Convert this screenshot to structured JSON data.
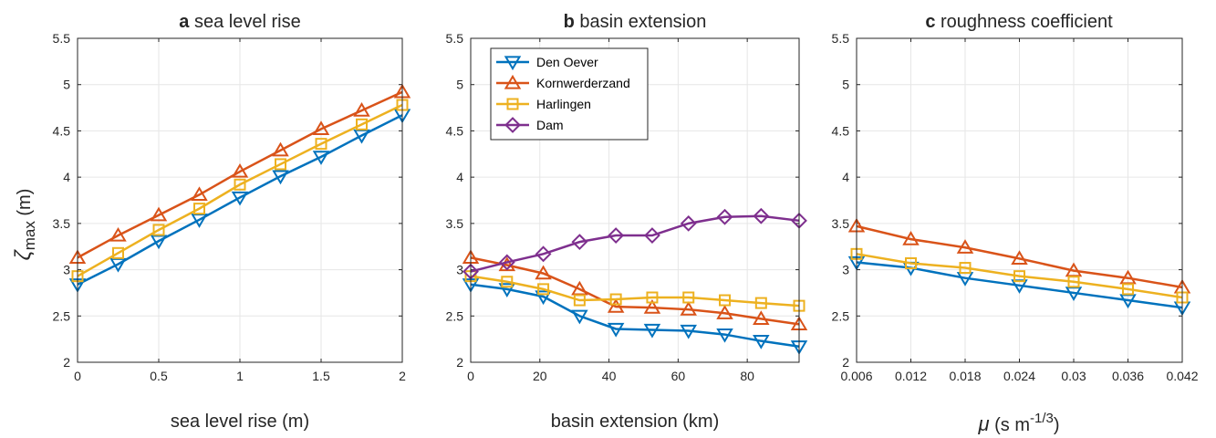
{
  "colors": {
    "den_oever": "#0072BD",
    "kornwerderzand": "#D95319",
    "harlingen": "#EDB120",
    "dam": "#7E2F8E",
    "grid": "#e6e6e6",
    "axis": "#262626"
  },
  "chart_data": [
    {
      "type": "line",
      "panel_letter": "a",
      "title": "sea level rise",
      "xlabel": "sea level rise (m)",
      "ylabel_symbol": "ζ",
      "ylabel_sub": "max",
      "ylabel_unit": " (m)",
      "xlim": [
        0,
        2
      ],
      "ylim": [
        2,
        5.5
      ],
      "xticks": [
        0,
        0.5,
        1,
        1.5,
        2
      ],
      "xtick_labels": [
        "0",
        "0.5",
        "1",
        "1.5",
        "2"
      ],
      "yticks": [
        2,
        2.5,
        3,
        3.5,
        4,
        4.5,
        5,
        5.5
      ],
      "ytick_labels": [
        "2",
        "2.5",
        "3",
        "3.5",
        "4",
        "4.5",
        "5",
        "5.5"
      ],
      "grid": true,
      "x": [
        0,
        0.25,
        0.5,
        0.75,
        1,
        1.25,
        1.5,
        1.75,
        2
      ],
      "series": [
        {
          "key": "den_oever",
          "marker": "triangle-down",
          "values": [
            2.84,
            3.06,
            3.31,
            3.54,
            3.78,
            4.01,
            4.22,
            4.45,
            4.67
          ]
        },
        {
          "key": "kornwerderzand",
          "marker": "triangle-up",
          "values": [
            3.13,
            3.37,
            3.59,
            3.81,
            4.06,
            4.29,
            4.52,
            4.72,
            4.92
          ]
        },
        {
          "key": "harlingen",
          "marker": "square",
          "values": [
            2.93,
            3.18,
            3.43,
            3.66,
            3.92,
            4.14,
            4.36,
            4.57,
            4.78
          ]
        }
      ]
    },
    {
      "type": "line",
      "panel_letter": "b",
      "title": "basin extension",
      "xlabel": "basin extension (km)",
      "xlim": [
        0,
        95
      ],
      "ylim": [
        2,
        5.5
      ],
      "xticks": [
        0,
        20,
        40,
        60,
        80
      ],
      "xtick_labels": [
        "0",
        "20",
        "40",
        "60",
        "80"
      ],
      "yticks": [
        2,
        2.5,
        3,
        3.5,
        4,
        4.5,
        5,
        5.5
      ],
      "ytick_labels": [
        "2",
        "2.5",
        "3",
        "3.5",
        "4",
        "4.5",
        "5",
        "5.5"
      ],
      "grid": true,
      "legend": {
        "placement": "top-left",
        "entries": [
          {
            "key": "den_oever",
            "label": "Den Oever",
            "marker": "triangle-down"
          },
          {
            "key": "kornwerderzand",
            "label": "Kornwerderzand",
            "marker": "triangle-up"
          },
          {
            "key": "harlingen",
            "label": "Harlingen",
            "marker": "square"
          },
          {
            "key": "dam",
            "label": "Dam",
            "marker": "diamond"
          }
        ]
      },
      "x": [
        0,
        10.5,
        21,
        31.5,
        42,
        52.5,
        63,
        73.5,
        84,
        95
      ],
      "series": [
        {
          "key": "den_oever",
          "marker": "triangle-down",
          "values": [
            2.84,
            2.79,
            2.71,
            2.5,
            2.36,
            2.35,
            2.34,
            2.3,
            2.23,
            2.17
          ]
        },
        {
          "key": "kornwerderzand",
          "marker": "triangle-up",
          "values": [
            3.13,
            3.05,
            2.96,
            2.79,
            2.6,
            2.59,
            2.57,
            2.53,
            2.47,
            2.41
          ]
        },
        {
          "key": "harlingen",
          "marker": "square",
          "values": [
            2.93,
            2.87,
            2.79,
            2.67,
            2.68,
            2.7,
            2.7,
            2.67,
            2.64,
            2.61
          ]
        },
        {
          "key": "dam",
          "marker": "diamond",
          "values": [
            2.98,
            3.08,
            3.17,
            3.3,
            3.37,
            3.37,
            3.5,
            3.57,
            3.58,
            3.53
          ]
        }
      ]
    },
    {
      "type": "line",
      "panel_letter": "c",
      "title": "roughness coefficient",
      "xlabel_symbol": "μ",
      "xlabel_text": " (s m",
      "xlabel_sup": "-1/3",
      "xlabel_close": ")",
      "xlim": [
        0.006,
        0.042
      ],
      "ylim": [
        2,
        5.5
      ],
      "xticks": [
        0.006,
        0.012,
        0.018,
        0.024,
        0.03,
        0.036,
        0.042
      ],
      "xtick_labels": [
        "0.006",
        "0.012",
        "0.018",
        "0.024",
        "0.03",
        "0.036",
        "0.042"
      ],
      "yticks": [
        2,
        2.5,
        3,
        3.5,
        4,
        4.5,
        5,
        5.5
      ],
      "ytick_labels": [
        "2",
        "2.5",
        "3",
        "3.5",
        "4",
        "4.5",
        "5",
        "5.5"
      ],
      "grid": true,
      "x": [
        0.006,
        0.012,
        0.018,
        0.024,
        0.03,
        0.036,
        0.042
      ],
      "series": [
        {
          "key": "den_oever",
          "marker": "triangle-down",
          "values": [
            3.08,
            3.02,
            2.91,
            2.83,
            2.75,
            2.67,
            2.59
          ]
        },
        {
          "key": "kornwerderzand",
          "marker": "triangle-up",
          "values": [
            3.47,
            3.33,
            3.24,
            3.12,
            2.99,
            2.91,
            2.81
          ]
        },
        {
          "key": "harlingen",
          "marker": "square",
          "values": [
            3.17,
            3.07,
            3.02,
            2.93,
            2.87,
            2.79,
            2.7
          ]
        }
      ]
    }
  ]
}
